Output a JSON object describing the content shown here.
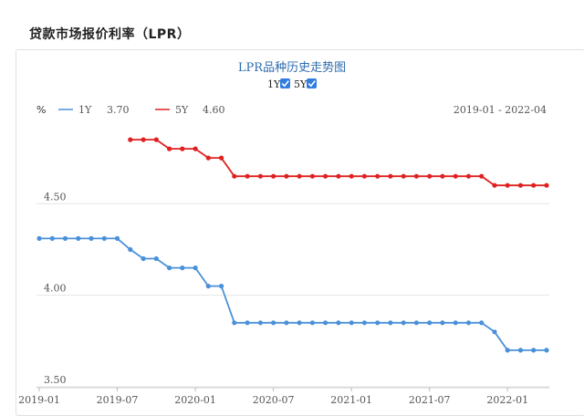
{
  "page": {
    "title": "贷款市场报价利率（LPR）"
  },
  "chart_data": {
    "type": "line",
    "title": "LPR品种历史走势图",
    "unit": "%",
    "date_range_label": "2019-01 - 2022-04",
    "ylim": [
      3.5,
      4.95
    ],
    "yticks": [
      3.5,
      4.0,
      4.5
    ],
    "ytick_labels": [
      "3.50",
      "4.00",
      "4.50"
    ],
    "x_tick_labels": [
      "2019-01",
      "2019-07",
      "2020-01",
      "2020-07",
      "2021-01",
      "2021-07",
      "2022-01"
    ],
    "x_tick_months": [
      0,
      6,
      12,
      18,
      24,
      30,
      36
    ],
    "series": [
      {
        "name": "1Y",
        "latest_value": "3.70",
        "color": "#4a90d9",
        "start_month": 0,
        "values": [
          4.31,
          4.31,
          4.31,
          4.31,
          4.31,
          4.31,
          4.31,
          4.25,
          4.2,
          4.2,
          4.15,
          4.15,
          4.15,
          4.05,
          4.05,
          3.85,
          3.85,
          3.85,
          3.85,
          3.85,
          3.85,
          3.85,
          3.85,
          3.85,
          3.85,
          3.85,
          3.85,
          3.85,
          3.85,
          3.85,
          3.85,
          3.85,
          3.85,
          3.85,
          3.85,
          3.8,
          3.7,
          3.7,
          3.7,
          3.7
        ]
      },
      {
        "name": "5Y",
        "latest_value": "4.60",
        "color": "#e02020",
        "start_month": 7,
        "values": [
          4.85,
          4.85,
          4.85,
          4.8,
          4.8,
          4.8,
          4.75,
          4.75,
          4.65,
          4.65,
          4.65,
          4.65,
          4.65,
          4.65,
          4.65,
          4.65,
          4.65,
          4.65,
          4.65,
          4.65,
          4.65,
          4.65,
          4.65,
          4.65,
          4.65,
          4.65,
          4.65,
          4.65,
          4.6,
          4.6,
          4.6,
          4.6,
          4.6
        ]
      }
    ],
    "grid": "horizontal",
    "legend": "top-left"
  }
}
